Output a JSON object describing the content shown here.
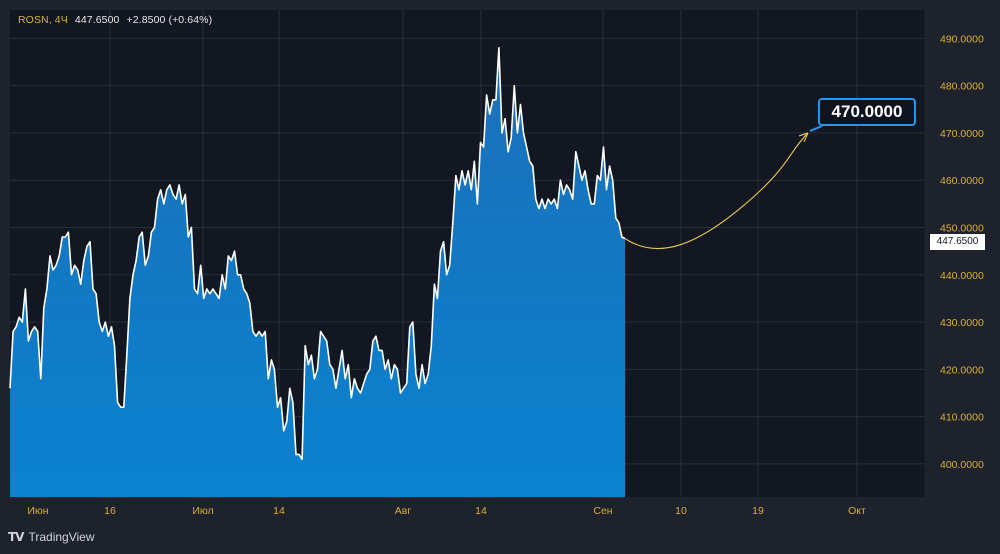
{
  "header": {
    "symbol": "ROSN",
    "timeframe": "4Ч",
    "price": "447.6500",
    "change": "+2.8500 (+0.64%)"
  },
  "brand": {
    "name": "TradingView"
  },
  "colors": {
    "background": "#131722",
    "frame": "#1e222d",
    "area_top": "#1b6fb8",
    "area_bottom": "#0a82d0",
    "line": "#ffffff",
    "axis_text": "#d9b03a",
    "forecast": "#e6c84a",
    "target_border": "#2196f3"
  },
  "chart_data": {
    "type": "area",
    "x_tick_labels": [
      "Июн",
      "16",
      "Июл",
      "14",
      "Авг",
      "14",
      "Сен",
      "10",
      "19",
      "Окт"
    ],
    "y_ticks": [
      400,
      410,
      420,
      430,
      440,
      450,
      460,
      470,
      480,
      490
    ],
    "y_tick_labels": [
      "400.0000",
      "410.0000",
      "420.0000",
      "430.0000",
      "440.0000",
      "450.0000",
      "460.0000",
      "470.0000",
      "480.0000",
      "490.0000"
    ],
    "ylim": [
      393,
      496
    ],
    "grid": true,
    "series": [
      {
        "values": [
          416,
          428,
          429,
          431,
          430,
          437,
          426,
          428,
          429,
          428,
          418,
          433,
          437,
          444,
          441,
          442,
          444,
          448,
          448,
          449,
          440,
          442,
          441,
          438,
          443,
          446,
          447,
          437,
          436,
          430,
          428,
          430,
          427,
          429,
          425,
          413,
          412,
          412,
          423,
          435,
          440,
          443,
          448,
          449,
          442,
          444,
          449,
          450,
          456,
          458,
          455,
          458,
          459,
          457,
          456,
          459,
          455,
          457,
          448,
          450,
          437,
          436,
          442,
          435,
          437,
          436,
          437,
          436,
          435,
          440,
          437,
          444,
          443,
          445,
          440,
          440,
          437,
          436,
          434,
          428,
          427,
          428,
          427,
          428,
          418,
          422,
          420,
          412,
          414,
          407,
          409,
          416,
          413,
          402,
          402,
          401,
          425,
          421,
          423,
          418,
          420,
          428,
          427,
          426,
          421,
          420,
          416,
          420,
          424,
          418,
          421,
          414,
          418,
          416,
          415,
          417,
          419,
          420,
          426,
          427,
          424,
          424,
          420,
          422,
          418,
          421,
          420,
          415,
          416,
          417,
          429,
          430,
          419,
          416,
          421,
          417,
          419,
          425,
          438,
          435,
          445,
          447,
          440,
          442,
          451,
          461,
          458,
          462,
          459,
          462,
          458,
          464,
          455,
          468,
          467,
          478,
          474,
          477,
          477,
          488,
          470,
          473,
          466,
          469,
          480,
          470,
          476,
          470,
          467,
          464,
          463,
          456,
          454,
          456,
          454,
          456,
          455,
          456,
          454,
          460,
          457,
          459,
          458,
          456,
          466,
          463,
          460,
          462,
          458,
          455,
          455,
          461,
          460,
          467,
          458,
          463,
          460,
          452,
          451,
          448,
          447.65
        ]
      }
    ],
    "forecast": {
      "target": 470.0,
      "target_label": "470.0000",
      "path": [
        447.65,
        442.8,
        446.8,
        454.9,
        470.0
      ]
    },
    "last_price_label": "447.6500"
  }
}
